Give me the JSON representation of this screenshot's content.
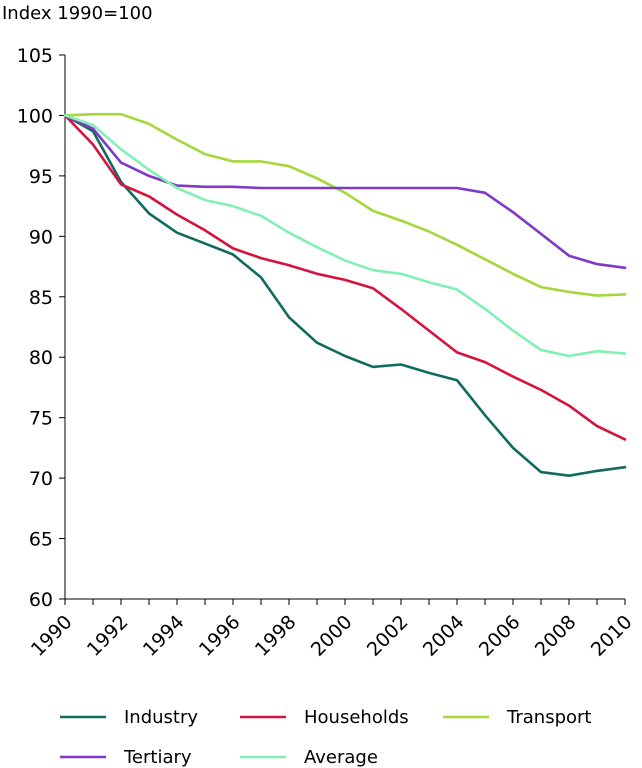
{
  "chart_data": {
    "type": "line",
    "ylabel": "Index 1990=100",
    "x": [
      1990,
      1991,
      1992,
      1993,
      1994,
      1995,
      1996,
      1997,
      1998,
      1999,
      2000,
      2001,
      2002,
      2003,
      2004,
      2005,
      2006,
      2007,
      2008,
      2009,
      2010
    ],
    "x_tick_labels": [
      "1990",
      "1992",
      "1994",
      "1996",
      "1998",
      "2000",
      "2002",
      "2004",
      "2006",
      "2008",
      "2010"
    ],
    "y_tick_labels": [
      "60",
      "65",
      "70",
      "75",
      "80",
      "85",
      "90",
      "95",
      "100",
      "105"
    ],
    "ylim": [
      60,
      105
    ],
    "grid": false,
    "legend_position": "bottom",
    "series": [
      {
        "name": "Industry",
        "color": "#0f6b5e",
        "values": [
          100,
          98.7,
          94.5,
          91.9,
          90.3,
          89.4,
          88.5,
          86.6,
          83.3,
          81.2,
          80.1,
          79.2,
          79.4,
          78.7,
          78.1,
          75.2,
          72.5,
          70.5,
          70.2,
          70.6,
          70.9
        ]
      },
      {
        "name": "Households",
        "color": "#d4143c",
        "values": [
          100,
          97.6,
          94.3,
          93.3,
          91.8,
          90.5,
          89.0,
          88.2,
          87.6,
          86.9,
          86.4,
          85.7,
          84.0,
          82.2,
          80.4,
          79.6,
          78.4,
          77.3,
          76.0,
          74.3,
          73.2
        ]
      },
      {
        "name": "Transport",
        "color": "#a4d83a",
        "values": [
          100,
          100.1,
          100.1,
          99.3,
          98.0,
          96.8,
          96.2,
          96.2,
          95.8,
          94.8,
          93.6,
          92.1,
          91.3,
          90.4,
          89.3,
          88.1,
          86.9,
          85.8,
          85.4,
          85.1,
          85.2
        ]
      },
      {
        "name": "Tertiary",
        "color": "#8038c8",
        "values": [
          100,
          98.9,
          96.1,
          95.0,
          94.2,
          94.1,
          94.1,
          94.0,
          94.0,
          94.0,
          94.0,
          94.0,
          94.0,
          94.0,
          94.0,
          93.6,
          92.0,
          90.2,
          88.4,
          87.7,
          87.4
        ]
      },
      {
        "name": "Average",
        "color": "#80f0b4",
        "values": [
          100,
          99.2,
          97.2,
          95.5,
          94.0,
          93.0,
          92.5,
          91.7,
          90.3,
          89.1,
          88.0,
          87.2,
          86.9,
          86.2,
          85.6,
          84.0,
          82.2,
          80.6,
          80.1,
          80.5,
          80.3
        ]
      }
    ]
  }
}
